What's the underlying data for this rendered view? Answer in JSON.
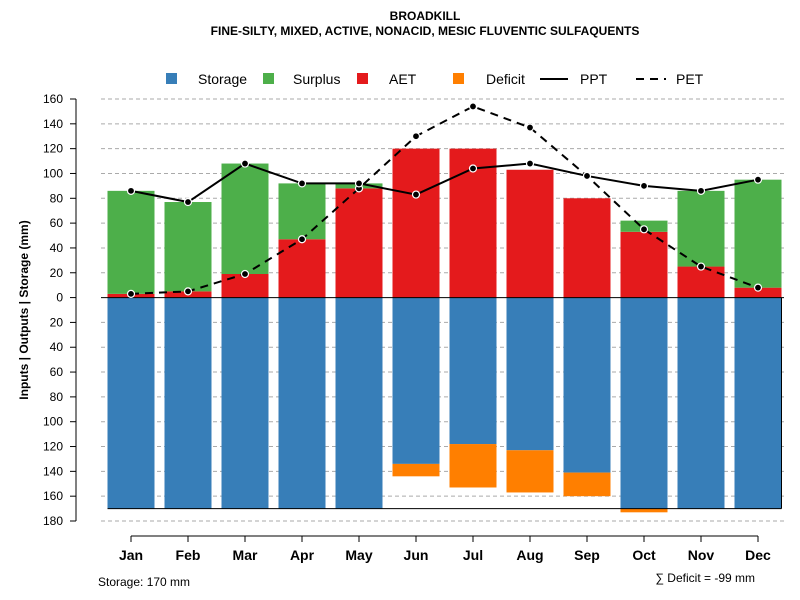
{
  "colors": {
    "storage": "#377EB8",
    "surplus": "#4DAF4A",
    "aet": "#E41A1C",
    "deficit": "#FF7F00",
    "grid": "#aaaaaa",
    "line": "#000000"
  },
  "chart_data": {
    "type": "bar",
    "title": "BROADKILL",
    "subtitle": "FINE-SILTY, MIXED, ACTIVE, NONACID, MESIC FLUVENTIC SULFAQUENTS",
    "ylabel": "Inputs | Outputs | Storage    (mm)",
    "ylim": [
      -180,
      160
    ],
    "y_ticks": [
      -180,
      -160,
      -140,
      -120,
      -100,
      -80,
      -60,
      -40,
      -20,
      0,
      20,
      40,
      60,
      80,
      100,
      120,
      140,
      160
    ],
    "y_tick_labels": [
      "180",
      "160",
      "140",
      "120",
      "100",
      "80",
      "60",
      "40",
      "20",
      "0",
      "20",
      "40",
      "60",
      "80",
      "100",
      "120",
      "140",
      "160"
    ],
    "categories": [
      "Jan",
      "Feb",
      "Mar",
      "Apr",
      "May",
      "Jun",
      "Jul",
      "Aug",
      "Sep",
      "Oct",
      "Nov",
      "Dec"
    ],
    "legend": {
      "storage": "Storage",
      "surplus": "Surplus",
      "aet": "AET",
      "deficit": "Deficit",
      "ppt": "PPT",
      "pet": "PET"
    },
    "series": [
      {
        "name": "AET",
        "values": [
          3,
          5,
          19,
          47,
          88,
          120,
          120,
          103,
          80,
          53,
          25,
          8
        ]
      },
      {
        "name": "Surplus",
        "values": [
          83,
          72,
          89,
          45,
          4,
          0,
          0,
          0,
          0,
          9,
          61,
          87
        ]
      },
      {
        "name": "Storage",
        "values": [
          170,
          170,
          170,
          170,
          170,
          134,
          118,
          123,
          141,
          170,
          170,
          170
        ]
      },
      {
        "name": "Deficit",
        "values": [
          0,
          0,
          0,
          0,
          0,
          10,
          35,
          34,
          19,
          3,
          0,
          0
        ]
      },
      {
        "name": "PPT",
        "values": [
          86,
          77,
          108,
          92,
          92,
          83,
          104,
          108,
          98,
          90,
          86,
          95
        ]
      },
      {
        "name": "PET",
        "values": [
          3,
          5,
          19,
          47,
          88,
          130,
          154,
          137,
          98,
          55,
          25,
          8
        ]
      }
    ],
    "storage_capacity": 170,
    "footer": {
      "storage_note": "Storage: 170 mm",
      "deficit_note": "∑ Deficit = -99 mm"
    }
  }
}
